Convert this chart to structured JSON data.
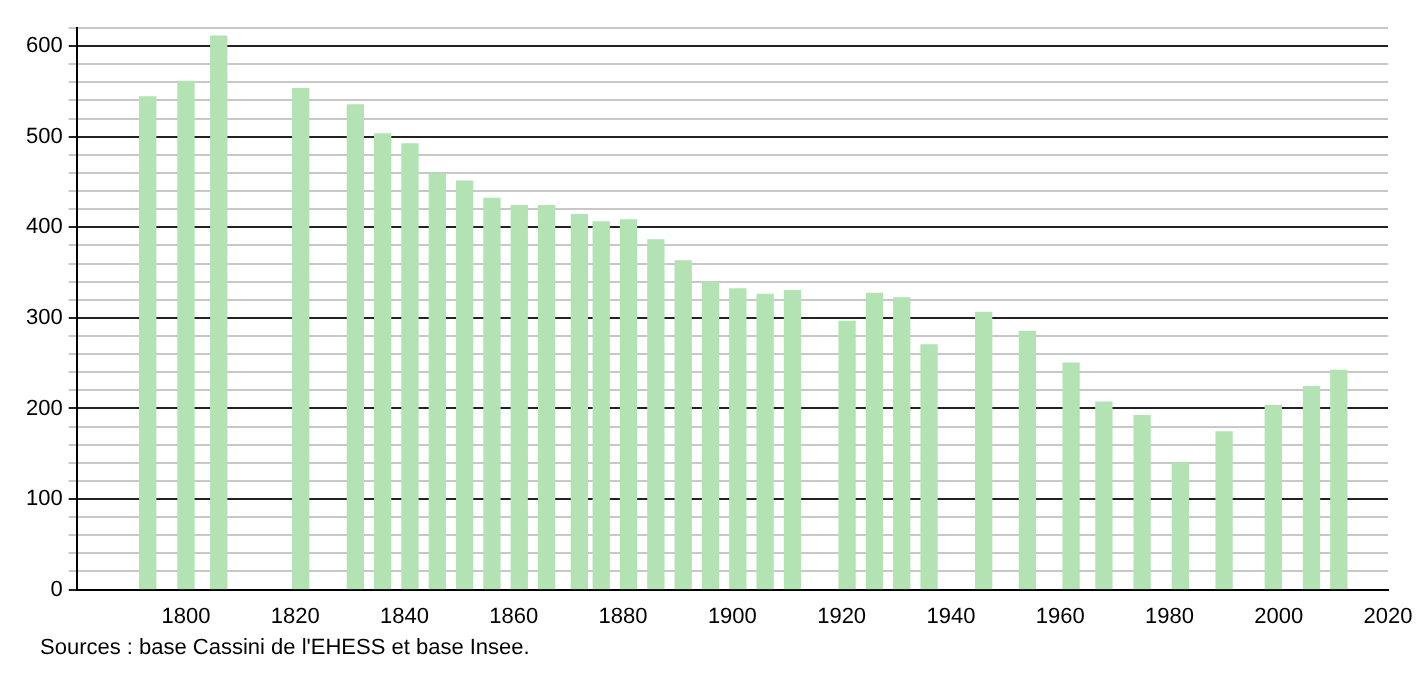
{
  "chart_data": {
    "type": "bar",
    "x": [
      1793,
      1800,
      1806,
      1821,
      1831,
      1836,
      1841,
      1846,
      1851,
      1856,
      1861,
      1866,
      1872,
      1876,
      1881,
      1886,
      1891,
      1896,
      1901,
      1906,
      1911,
      1921,
      1926,
      1931,
      1936,
      1946,
      1954,
      1962,
      1968,
      1975,
      1982,
      1990,
      1999,
      2006,
      2011
    ],
    "values": [
      544,
      561,
      611,
      553,
      535,
      503,
      492,
      459,
      451,
      432,
      424,
      424,
      414,
      406,
      408,
      386,
      363,
      339,
      332,
      326,
      330,
      296,
      327,
      322,
      270,
      306,
      285,
      250,
      207,
      192,
      140,
      174,
      203,
      224,
      242
    ],
    "color": "#b3e3b3",
    "xlim": [
      1780,
      2020
    ],
    "xticks": [
      1800,
      1820,
      1840,
      1860,
      1880,
      1900,
      1920,
      1940,
      1960,
      1980,
      2000,
      2020
    ],
    "ylim": [
      0,
      620
    ],
    "yticks": [
      0,
      {
        "value": 20,
        "label": null
      },
      {
        "value": 40,
        "label": null
      },
      {
        "value": 60,
        "label": null
      },
      {
        "value": 80,
        "label": null
      },
      100,
      {
        "value": 120,
        "label": null
      },
      {
        "value": 140,
        "label": null
      },
      {
        "value": 160,
        "label": null
      },
      {
        "value": 180,
        "label": null
      },
      200,
      {
        "value": 220,
        "label": null
      },
      {
        "value": 240,
        "label": null
      },
      {
        "value": 260,
        "label": null
      },
      {
        "value": 280,
        "label": null
      },
      300,
      {
        "value": 320,
        "label": null
      },
      {
        "value": 340,
        "label": null
      },
      {
        "value": 360,
        "label": null
      },
      {
        "value": 380,
        "label": null
      },
      400,
      {
        "value": 420,
        "label": null
      },
      {
        "value": 440,
        "label": null
      },
      {
        "value": 460,
        "label": null
      },
      {
        "value": 480,
        "label": null
      },
      500,
      {
        "value": 520,
        "label": null
      },
      {
        "value": 540,
        "label": null
      },
      {
        "value": 560,
        "label": null
      },
      {
        "value": 580,
        "label": null
      },
      600,
      {
        "value": 620,
        "label": null
      }
    ],
    "grid": "y",
    "annotations": [
      "Sources : base Cassini de l'EHESS et base Insee."
    ]
  }
}
